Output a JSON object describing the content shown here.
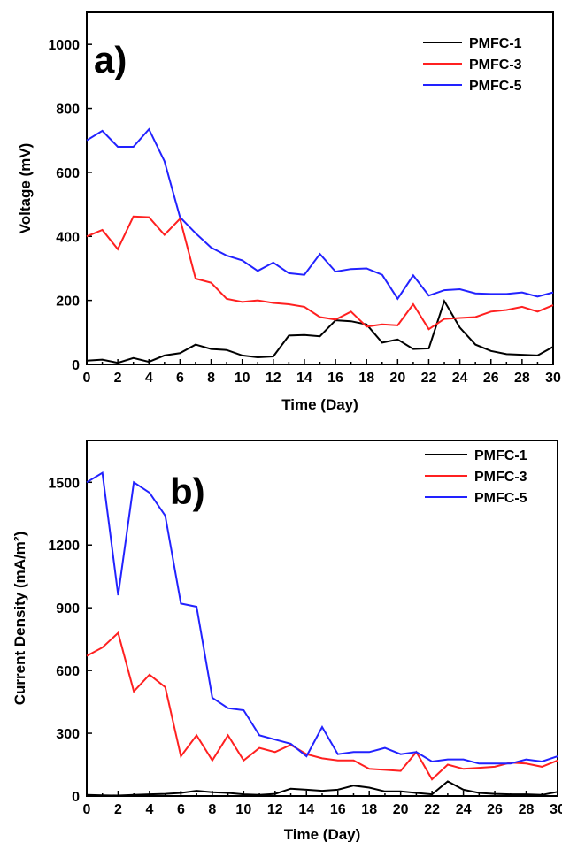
{
  "colors": {
    "PMFC-1": "#000000",
    "PMFC-3": "#ff2020",
    "PMFC-5": "#2222ff"
  },
  "chart_data": [
    {
      "type": "line",
      "panel_label": "a)",
      "xlabel": "Time (Day)",
      "ylabel": "Voltage (mV)",
      "xlim": [
        0,
        30
      ],
      "ylim": [
        0,
        1100
      ],
      "xticks": [
        0,
        2,
        4,
        6,
        8,
        10,
        12,
        14,
        16,
        18,
        20,
        22,
        24,
        26,
        28,
        30
      ],
      "yticks": [
        0,
        200,
        400,
        600,
        800,
        1000
      ],
      "legend_position": "top-right",
      "x": [
        0,
        1,
        2,
        3,
        4,
        5,
        6,
        7,
        8,
        9,
        10,
        11,
        12,
        13,
        14,
        15,
        16,
        17,
        18,
        19,
        20,
        21,
        22,
        23,
        24,
        25,
        26,
        27,
        28,
        29,
        30
      ],
      "series": [
        {
          "name": "PMFC-1",
          "color": "#000000",
          "values": [
            12,
            15,
            5,
            20,
            8,
            28,
            35,
            62,
            48,
            45,
            28,
            22,
            25,
            90,
            92,
            88,
            138,
            135,
            125,
            68,
            78,
            48,
            50,
            198,
            115,
            62,
            42,
            32,
            30,
            28,
            55
          ]
        },
        {
          "name": "PMFC-3",
          "color": "#ff2020",
          "values": [
            400,
            420,
            360,
            462,
            460,
            405,
            455,
            268,
            255,
            205,
            195,
            200,
            192,
            188,
            180,
            148,
            140,
            165,
            118,
            125,
            122,
            188,
            110,
            142,
            145,
            148,
            165,
            170,
            180,
            165,
            185
          ]
        },
        {
          "name": "PMFC-5",
          "color": "#2222ff",
          "values": [
            700,
            730,
            680,
            680,
            735,
            635,
            460,
            410,
            365,
            340,
            325,
            292,
            318,
            285,
            280,
            345,
            290,
            298,
            300,
            280,
            205,
            278,
            215,
            232,
            235,
            222,
            220,
            220,
            225,
            212,
            225
          ]
        }
      ]
    },
    {
      "type": "line",
      "panel_label": "b)",
      "xlabel": "Time (Day)",
      "ylabel": "Current Density (mA/m²)",
      "xlim": [
        0,
        30
      ],
      "ylim": [
        0,
        1700
      ],
      "xticks": [
        0,
        2,
        4,
        6,
        8,
        10,
        12,
        14,
        16,
        18,
        20,
        22,
        24,
        26,
        28,
        30
      ],
      "yticks": [
        0,
        300,
        600,
        900,
        1200,
        1500
      ],
      "legend_position": "top-right",
      "x": [
        0,
        1,
        2,
        3,
        4,
        5,
        6,
        7,
        8,
        9,
        10,
        11,
        12,
        13,
        14,
        15,
        16,
        17,
        18,
        19,
        20,
        21,
        22,
        23,
        24,
        25,
        26,
        27,
        28,
        29,
        30
      ],
      "series": [
        {
          "name": "PMFC-1",
          "color": "#000000",
          "values": [
            5,
            3,
            2,
            5,
            8,
            10,
            15,
            25,
            18,
            15,
            8,
            5,
            10,
            35,
            30,
            25,
            30,
            50,
            40,
            22,
            22,
            15,
            8,
            70,
            30,
            15,
            10,
            8,
            8,
            5,
            20
          ]
        },
        {
          "name": "PMFC-3",
          "color": "#ff2020",
          "values": [
            670,
            710,
            780,
            500,
            580,
            520,
            190,
            290,
            170,
            290,
            170,
            230,
            210,
            245,
            200,
            180,
            170,
            170,
            130,
            125,
            120,
            210,
            80,
            150,
            130,
            135,
            140,
            160,
            155,
            140,
            170
          ]
        },
        {
          "name": "PMFC-5",
          "color": "#2222ff",
          "values": [
            1500,
            1545,
            960,
            1500,
            1450,
            1340,
            920,
            905,
            470,
            420,
            410,
            290,
            270,
            250,
            190,
            330,
            200,
            210,
            210,
            230,
            200,
            210,
            165,
            175,
            175,
            155,
            155,
            155,
            175,
            165,
            190
          ]
        }
      ]
    }
  ]
}
